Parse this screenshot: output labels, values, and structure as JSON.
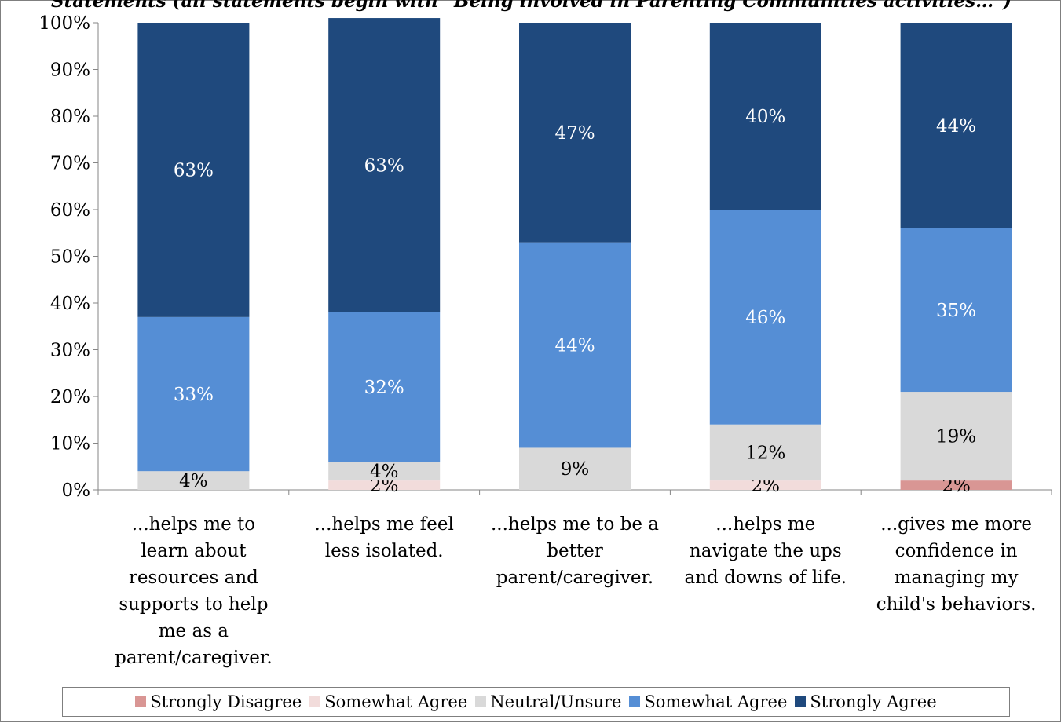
{
  "chart_data": {
    "type": "bar",
    "stacked": true,
    "title": "Statements (all statements begin with \"Being involved in Parenting Communities activities…\")",
    "xlabel": "",
    "ylabel": "",
    "ylim": [
      0,
      100
    ],
    "y_tick_labels": [
      "0%",
      "10%",
      "20%",
      "30%",
      "40%",
      "50%",
      "60%",
      "70%",
      "80%",
      "90%",
      "100%"
    ],
    "grid": false,
    "legend_position": "bottom",
    "categories": [
      "...helps me to learn about resources and supports to help me as a parent/caregiver.",
      "...helps me feel less isolated.",
      "...helps me to be a better parent/caregiver.",
      "...helps me navigate the ups and downs of life.",
      "...gives me more confidence in managing my child's behaviors."
    ],
    "category_lines": [
      [
        "...helps me to",
        "learn about",
        "resources and",
        "supports to help",
        "me as a",
        "parent/caregiver."
      ],
      [
        "...helps me feel",
        "less isolated."
      ],
      [
        "...helps me to be a",
        "better",
        "parent/caregiver."
      ],
      [
        "...helps me",
        "navigate the ups",
        "and downs of life."
      ],
      [
        "...gives me more",
        "confidence in",
        "managing my",
        "child's behaviors."
      ]
    ],
    "series": [
      {
        "name": "Strongly Disagree",
        "color": "#d99694",
        "values": [
          0,
          0,
          0,
          0,
          2
        ],
        "labels": [
          "",
          "",
          "",
          "",
          "2%"
        ]
      },
      {
        "name": "Somewhat Agree",
        "color": "#f2dcdb",
        "values": [
          0,
          2,
          0,
          2,
          0
        ],
        "labels": [
          "",
          "2%",
          "",
          "2%",
          ""
        ]
      },
      {
        "name": "Neutral/Unsure",
        "color": "#d9d9d9",
        "values": [
          4,
          4,
          9,
          12,
          19
        ],
        "labels": [
          "4%",
          "4%",
          "9%",
          "12%",
          "19%"
        ]
      },
      {
        "name": "Somewhat Agree",
        "color": "#558ed5",
        "values": [
          33,
          32,
          44,
          46,
          35
        ],
        "labels": [
          "33%",
          "32%",
          "44%",
          "46%",
          "35%"
        ]
      },
      {
        "name": "Strongly Agree",
        "color": "#1f497d",
        "values": [
          63,
          63,
          47,
          40,
          44
        ],
        "labels": [
          "63%",
          "63%",
          "47%",
          "40%",
          "44%"
        ]
      }
    ]
  }
}
